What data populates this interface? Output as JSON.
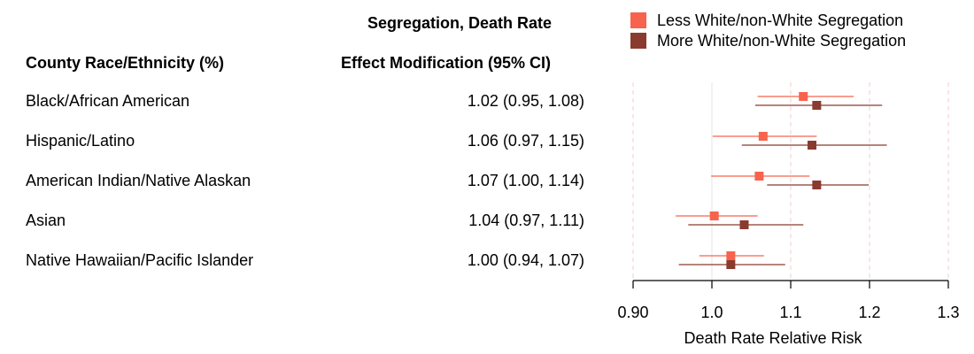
{
  "table": {
    "col1_header": "County Race/Ethnicity (%)",
    "col2_header_line1": "Segregation, Death Rate",
    "col2_header_line2": "Effect Modification (95% CI)"
  },
  "legend": [
    {
      "label": "Less White/non-White Segregation",
      "color": "#f7634d"
    },
    {
      "label": "More White/non-White Segregation",
      "color": "#8b3a2f"
    }
  ],
  "chart_data": {
    "type": "forest",
    "xlabel": "Death Rate Relative Risk",
    "xlim": [
      0.9,
      1.3
    ],
    "x_ticks": [
      0.9,
      1.0,
      1.1,
      1.2,
      1.3
    ],
    "x_tick_labels": [
      "0.90",
      "1.0",
      "1.1",
      "1.2",
      "1.3"
    ],
    "reference_lines": [
      0.9,
      1.0,
      1.1,
      1.2,
      1.3
    ],
    "rows": [
      {
        "label": "Black/African American",
        "estimate": "1.02 (0.95, 1.08)",
        "series": [
          {
            "name": "Less White/non-White Segregation",
            "rr": 1.116,
            "lo": 1.058,
            "hi": 1.18
          },
          {
            "name": "More White/non-White Segregation",
            "rr": 1.133,
            "lo": 1.055,
            "hi": 1.216
          }
        ]
      },
      {
        "label": "Hispanic/Latino",
        "estimate": "1.06 (0.97, 1.15)",
        "series": [
          {
            "name": "Less White/non-White Segregation",
            "rr": 1.065,
            "lo": 1.001,
            "hi": 1.133
          },
          {
            "name": "More White/non-White Segregation",
            "rr": 1.127,
            "lo": 1.038,
            "hi": 1.222
          }
        ]
      },
      {
        "label": "American Indian/Native Alaskan",
        "estimate": "1.07 (1.00, 1.14)",
        "series": [
          {
            "name": "Less White/non-White Segregation",
            "rr": 1.06,
            "lo": 0.999,
            "hi": 1.124
          },
          {
            "name": "More White/non-White Segregation",
            "rr": 1.133,
            "lo": 1.07,
            "hi": 1.199
          }
        ]
      },
      {
        "label": "Asian",
        "estimate": "1.04 (0.97, 1.11)",
        "series": [
          {
            "name": "Less White/non-White Segregation",
            "rr": 1.003,
            "lo": 0.954,
            "hi": 1.058
          },
          {
            "name": "More White/non-White Segregation",
            "rr": 1.041,
            "lo": 0.97,
            "hi": 1.116
          }
        ]
      },
      {
        "label": "Native Hawaiian/Pacific Islander",
        "estimate": "1.00 (0.94, 1.07)",
        "series": [
          {
            "name": "Less White/non-White Segregation",
            "rr": 1.024,
            "lo": 0.984,
            "hi": 1.066
          },
          {
            "name": "More White/non-White Segregation",
            "rr": 1.024,
            "lo": 0.958,
            "hi": 1.093
          }
        ]
      }
    ]
  }
}
